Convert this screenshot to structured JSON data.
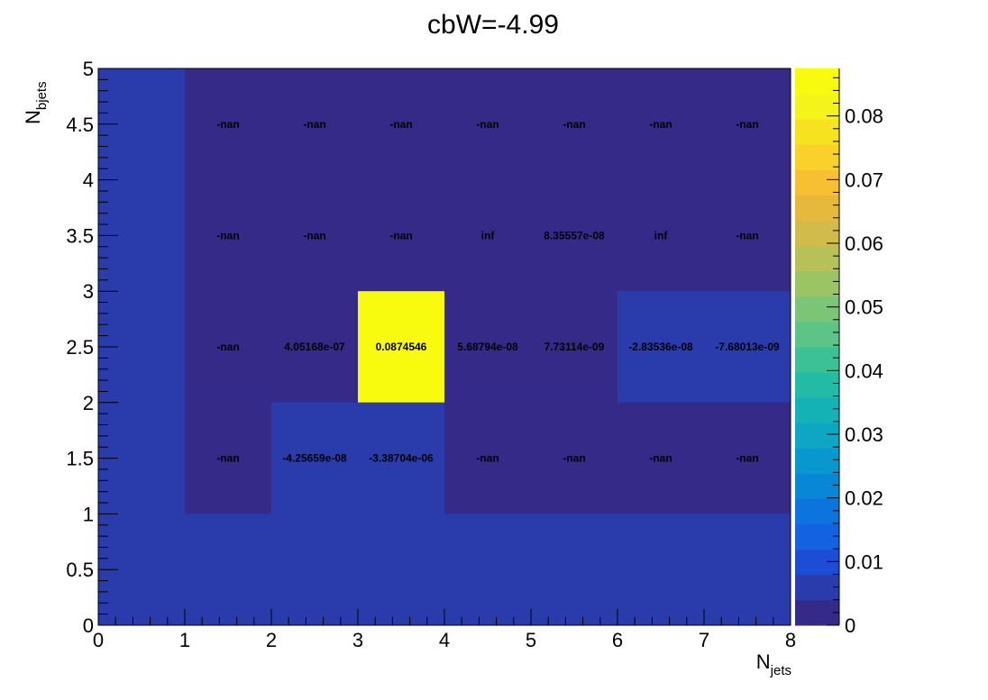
{
  "chart_data": {
    "type": "heatmap",
    "title": "cbW=-4.99",
    "xlabel": {
      "main": "N",
      "sub": "jets"
    },
    "ylabel": {
      "main": "N",
      "sub": "bjets"
    },
    "xlim": [
      0,
      8
    ],
    "ylim": [
      0,
      5
    ],
    "x_ticks": [
      "0",
      "1",
      "2",
      "3",
      "4",
      "5",
      "6",
      "7",
      "8"
    ],
    "y_ticks": [
      "0",
      "0.5",
      "1",
      "1.5",
      "2",
      "2.5",
      "3",
      "3.5",
      "4",
      "4.5",
      "5"
    ],
    "x_edges": [
      0,
      1,
      2,
      3,
      4,
      5,
      6,
      7,
      8
    ],
    "y_edges": [
      0,
      1,
      2,
      3,
      4,
      5
    ],
    "z_range": [
      0,
      0.0874546
    ],
    "colorbar_ticks": [
      "0",
      "0.01",
      "0.02",
      "0.03",
      "0.04",
      "0.05",
      "0.06",
      "0.07",
      "0.08"
    ],
    "colormap": [
      "#352a87",
      "#2a3bab",
      "#1c4dd4",
      "#1262e1",
      "#0c74dc",
      "#0787d5",
      "#0898ce",
      "#0ea6c4",
      "#14b2b4",
      "#24bba6",
      "#3cc196",
      "#5bc486",
      "#7bc576",
      "#9bc464",
      "#b8c157",
      "#d1bc4b",
      "#e6b93d",
      "#f7bf32",
      "#fad12a",
      "#f6e21f",
      "#f4f41b",
      "#f9fb0e"
    ],
    "empty_color": "#2a3bab",
    "cells": [
      {
        "x": 1,
        "y": 4,
        "z": null,
        "label": "-nan"
      },
      {
        "x": 2,
        "y": 4,
        "z": null,
        "label": "-nan"
      },
      {
        "x": 3,
        "y": 4,
        "z": null,
        "label": "-nan"
      },
      {
        "x": 4,
        "y": 4,
        "z": null,
        "label": "-nan"
      },
      {
        "x": 5,
        "y": 4,
        "z": null,
        "label": "-nan"
      },
      {
        "x": 6,
        "y": 4,
        "z": null,
        "label": "-nan"
      },
      {
        "x": 7,
        "y": 4,
        "z": null,
        "label": "-nan"
      },
      {
        "x": 1,
        "y": 3,
        "z": null,
        "label": "-nan"
      },
      {
        "x": 2,
        "y": 3,
        "z": null,
        "label": "-nan"
      },
      {
        "x": 3,
        "y": 3,
        "z": null,
        "label": "-nan"
      },
      {
        "x": 4,
        "y": 3,
        "z": null,
        "label": "inf"
      },
      {
        "x": 5,
        "y": 3,
        "z": 8.35557e-08,
        "label": "8.35557e-08"
      },
      {
        "x": 6,
        "y": 3,
        "z": null,
        "label": "inf"
      },
      {
        "x": 7,
        "y": 3,
        "z": null,
        "label": "-nan"
      },
      {
        "x": 1,
        "y": 2,
        "z": null,
        "label": "-nan"
      },
      {
        "x": 2,
        "y": 2,
        "z": 4.05168e-07,
        "label": "4.05168e-07"
      },
      {
        "x": 3,
        "y": 2,
        "z": 0.0874546,
        "label": "0.0874546"
      },
      {
        "x": 4,
        "y": 2,
        "z": 5.68794e-08,
        "label": "5.68794e-08"
      },
      {
        "x": 5,
        "y": 2,
        "z": 7.73114e-09,
        "label": "7.73114e-09"
      },
      {
        "x": 6,
        "y": 2,
        "z": -2.83536e-08,
        "label": "-2.83536e-08"
      },
      {
        "x": 7,
        "y": 2,
        "z": -7.68013e-09,
        "label": "-7.68013e-09"
      },
      {
        "x": 1,
        "y": 1,
        "z": null,
        "label": "-nan"
      },
      {
        "x": 2,
        "y": 1,
        "z": -4.25659e-08,
        "label": "-4.25659e-08"
      },
      {
        "x": 3,
        "y": 1,
        "z": -3.38704e-06,
        "label": "-3.38704e-06"
      },
      {
        "x": 4,
        "y": 1,
        "z": null,
        "label": "-nan"
      },
      {
        "x": 5,
        "y": 1,
        "z": null,
        "label": "-nan"
      },
      {
        "x": 6,
        "y": 1,
        "z": null,
        "label": "-nan"
      },
      {
        "x": 7,
        "y": 1,
        "z": null,
        "label": "-nan"
      }
    ]
  }
}
